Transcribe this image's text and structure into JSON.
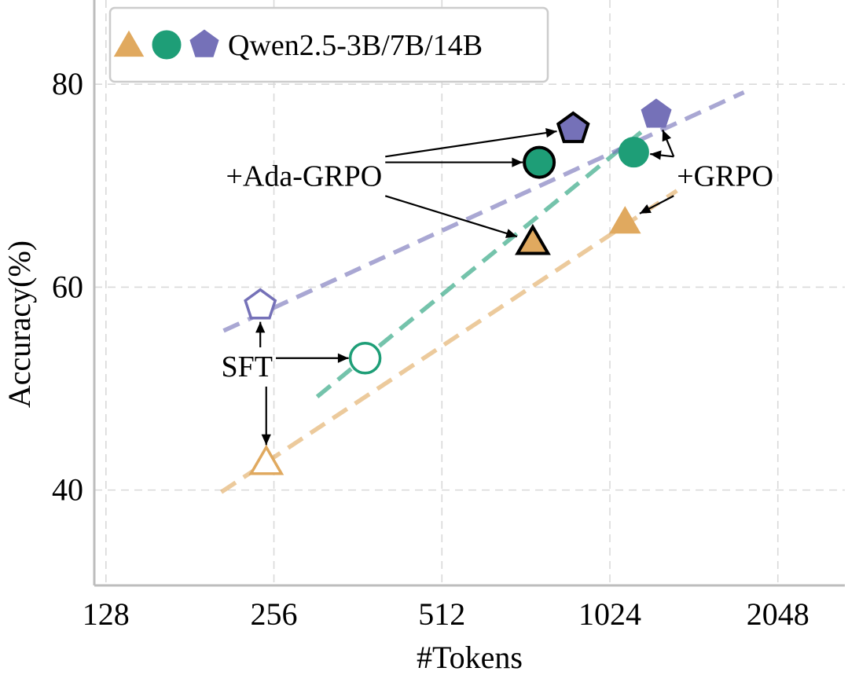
{
  "chart_data": {
    "type": "scatter",
    "title": "",
    "xlabel": "#Tokens",
    "ylabel": "Accuracy(%)",
    "x_scale": "log2",
    "xticks": [
      128,
      256,
      512,
      1024,
      2048
    ],
    "xtick_labels": [
      "128",
      "256",
      "512",
      "1024",
      "2048"
    ],
    "yticks": [
      40,
      60,
      80
    ],
    "ytick_labels": [
      "40",
      "60",
      "80"
    ],
    "xlim": [
      122,
      2700
    ],
    "ylim": [
      30.6,
      88.3
    ],
    "grid": true,
    "legend": {
      "position": "top-left",
      "label": "Qwen2.5-3B/7B/14B"
    },
    "series": [
      {
        "name": "Qwen2.5-3B",
        "marker": "triangle",
        "color": "#e0a95f",
        "points": [
          {
            "label": "SFT",
            "x": 248,
            "y": 42.8,
            "filled": false,
            "bold_edge": false
          },
          {
            "label": "+Ada-GRPO",
            "x": 745,
            "y": 64.5,
            "filled": true,
            "bold_edge": true
          },
          {
            "label": "+GRPO",
            "x": 1090,
            "y": 66.5,
            "filled": true,
            "bold_edge": false
          }
        ],
        "trend": {
          "x": [
            206,
            1350
          ],
          "y": [
            39.8,
            69.5
          ]
        }
      },
      {
        "name": "Qwen2.5-7B",
        "marker": "circle",
        "color": "#1e9e77",
        "points": [
          {
            "label": "SFT",
            "x": 373,
            "y": 53.0,
            "filled": false,
            "bold_edge": false
          },
          {
            "label": "+Ada-GRPO",
            "x": 765,
            "y": 72.3,
            "filled": true,
            "bold_edge": true
          },
          {
            "label": "+GRPO",
            "x": 1130,
            "y": 73.3,
            "filled": true,
            "bold_edge": false
          }
        ],
        "trend": {
          "x": [
            306,
            1240
          ],
          "y": [
            49.2,
            76.5
          ]
        }
      },
      {
        "name": "Qwen2.5-14B",
        "marker": "pentagon",
        "color": "#7571b8",
        "points": [
          {
            "label": "SFT",
            "x": 242,
            "y": 58.2,
            "filled": false,
            "bold_edge": false
          },
          {
            "label": "+Ada-GRPO",
            "x": 880,
            "y": 75.6,
            "filled": true,
            "bold_edge": true
          },
          {
            "label": "+GRPO",
            "x": 1240,
            "y": 77.0,
            "filled": true,
            "bold_edge": false
          }
        ],
        "trend": {
          "x": [
            208,
            1780
          ],
          "y": [
            55.7,
            79.2
          ]
        }
      }
    ],
    "annotations": [
      {
        "text": "SFT",
        "x": 206,
        "y": 51.2,
        "targets": [
          "Qwen2.5-14B:SFT",
          "Qwen2.5-7B:SFT",
          "Qwen2.5-3B:SFT"
        ]
      },
      {
        "text": "+Ada-GRPO",
        "x": 210,
        "y": 70.0,
        "targets": [
          "Qwen2.5-14B:+Ada-GRPO",
          "Qwen2.5-7B:+Ada-GRPO",
          "Qwen2.5-3B:+Ada-GRPO"
        ]
      },
      {
        "text": "+GRPO",
        "x": 1350,
        "y": 70.0,
        "targets": [
          "Qwen2.5-14B:+GRPO",
          "Qwen2.5-7B:+GRPO",
          "Qwen2.5-3B:+GRPO"
        ]
      }
    ]
  }
}
